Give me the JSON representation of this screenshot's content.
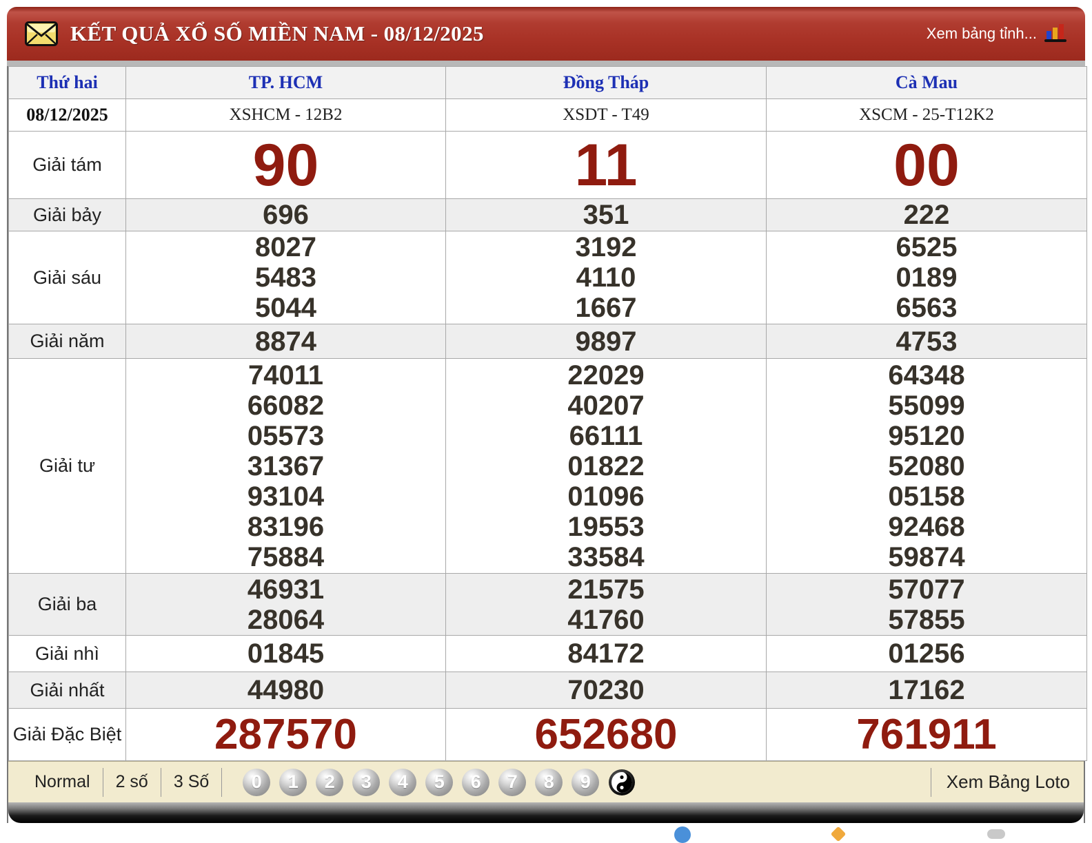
{
  "header": {
    "title": "KẾT QUẢ XỔ SỐ MIỀN NAM - 08/12/2025",
    "right_link": "Xem bảng tỉnh...",
    "icons": [
      "envelope-icon",
      "bar-chart-icon"
    ]
  },
  "table": {
    "day_label": "Thứ hai",
    "date": "08/12/2025",
    "provinces": [
      {
        "name": "TP. HCM",
        "code": "XSHCM - 12B2"
      },
      {
        "name": "Đồng Tháp",
        "code": "XSDT - T49"
      },
      {
        "name": "Cà Mau",
        "code": "XSCM - 25-T12K2"
      }
    ],
    "prizes": [
      {
        "label": "Giải tám",
        "values": [
          [
            "90"
          ],
          [
            "11"
          ],
          [
            "00"
          ]
        ]
      },
      {
        "label": "Giải bảy",
        "values": [
          [
            "696"
          ],
          [
            "351"
          ],
          [
            "222"
          ]
        ]
      },
      {
        "label": "Giải sáu",
        "values": [
          [
            "8027",
            "5483",
            "5044"
          ],
          [
            "3192",
            "4110",
            "1667"
          ],
          [
            "6525",
            "0189",
            "6563"
          ]
        ]
      },
      {
        "label": "Giải năm",
        "values": [
          [
            "8874"
          ],
          [
            "9897"
          ],
          [
            "4753"
          ]
        ]
      },
      {
        "label": "Giải tư",
        "values": [
          [
            "74011",
            "66082",
            "05573",
            "31367",
            "93104",
            "83196",
            "75884"
          ],
          [
            "22029",
            "40207",
            "66111",
            "01822",
            "01096",
            "19553",
            "33584"
          ],
          [
            "64348",
            "55099",
            "95120",
            "52080",
            "05158",
            "92468",
            "59874"
          ]
        ]
      },
      {
        "label": "Giải ba",
        "values": [
          [
            "46931",
            "28064"
          ],
          [
            "21575",
            "41760"
          ],
          [
            "57077",
            "57855"
          ]
        ]
      },
      {
        "label": "Giải nhì",
        "values": [
          [
            "01845"
          ],
          [
            "84172"
          ],
          [
            "01256"
          ]
        ]
      },
      {
        "label": "Giải nhất",
        "values": [
          [
            "44980"
          ],
          [
            "70230"
          ],
          [
            "17162"
          ]
        ]
      },
      {
        "label": "Giải Đặc Biệt",
        "values": [
          [
            "287570"
          ],
          [
            "652680"
          ],
          [
            "761911"
          ]
        ]
      }
    ]
  },
  "toolbar": {
    "modes": [
      "Normal",
      "2 số",
      "3 Số"
    ],
    "balls": [
      "0",
      "1",
      "2",
      "3",
      "4",
      "5",
      "6",
      "7",
      "8",
      "9"
    ],
    "yin_yang_icon": "yin-yang-icon",
    "right_link": "Xem Bảng Loto"
  },
  "colors": {
    "header_red": "#a93226",
    "prize_red": "#8f1b0f",
    "number_dark": "#37322a",
    "link_blue": "#1d30b4",
    "toolbar_cream": "#f2ebcf",
    "shade_gray": "#eeeeee"
  }
}
